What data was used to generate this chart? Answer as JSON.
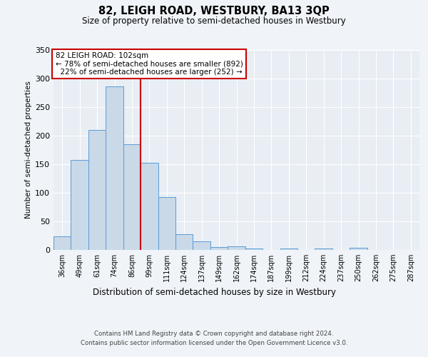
{
  "title": "82, LEIGH ROAD, WESTBURY, BA13 3QP",
  "subtitle": "Size of property relative to semi-detached houses in Westbury",
  "xlabel": "Distribution of semi-detached houses by size in Westbury",
  "ylabel": "Number of semi-detached properties",
  "categories": [
    "36sqm",
    "49sqm",
    "61sqm",
    "74sqm",
    "86sqm",
    "99sqm",
    "111sqm",
    "124sqm",
    "137sqm",
    "149sqm",
    "162sqm",
    "174sqm",
    "187sqm",
    "199sqm",
    "212sqm",
    "224sqm",
    "237sqm",
    "250sqm",
    "262sqm",
    "275sqm",
    "287sqm"
  ],
  "values": [
    24,
    157,
    210,
    286,
    185,
    152,
    93,
    27,
    15,
    5,
    6,
    3,
    0,
    3,
    0,
    3,
    0,
    4,
    0,
    0,
    0
  ],
  "bar_color": "#c9d9e8",
  "bar_edge_color": "#5b9bd5",
  "background_color": "#e8eef4",
  "grid_color": "#ffffff",
  "property_label": "82 LEIGH ROAD: 102sqm",
  "pct_smaller": 78,
  "count_smaller": 892,
  "pct_larger": 22,
  "count_larger": 252,
  "vline_x_index": 5,
  "ylim": [
    0,
    350
  ],
  "yticks": [
    0,
    50,
    100,
    150,
    200,
    250,
    300,
    350
  ],
  "annotation_box_color": "#ffffff",
  "annotation_box_edge": "#cc0000",
  "vline_color": "#cc0000",
  "fig_bg": "#f0f4f8",
  "footer_line1": "Contains HM Land Registry data © Crown copyright and database right 2024.",
  "footer_line2": "Contains public sector information licensed under the Open Government Licence v3.0."
}
